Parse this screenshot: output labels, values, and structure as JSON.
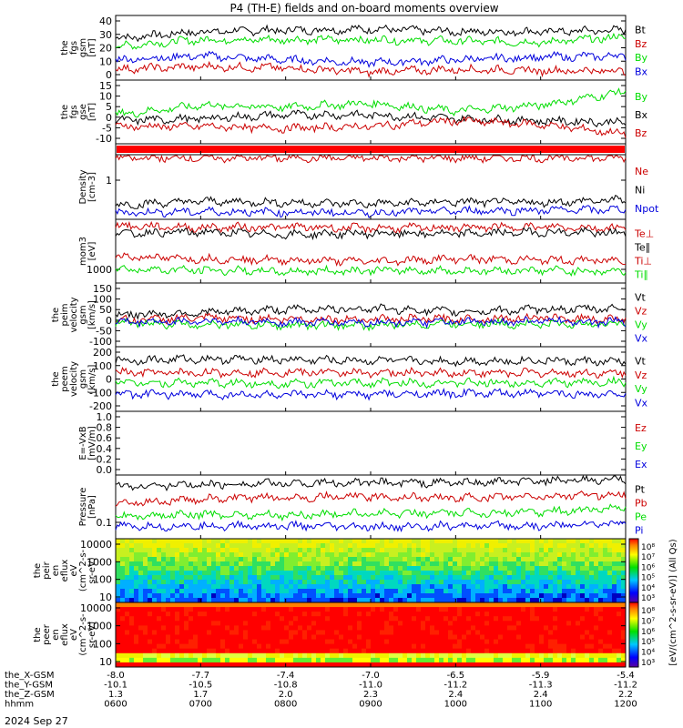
{
  "chart_data": {
    "type": "line",
    "title": "P4 (TH-E) fields and on-board moments overview",
    "x": [
      "0600",
      "0700",
      "0800",
      "0900",
      "1000",
      "1100",
      "1200"
    ],
    "panels": [
      {
        "ylabel": [
          "the",
          "fgs",
          "gsm",
          "[nT]"
        ],
        "yticks": [
          "40",
          "30",
          "20",
          "10",
          "0"
        ],
        "ylim": [
          -3,
          45
        ],
        "legend": [
          {
            "name": "Bt",
            "color": "#000000"
          },
          {
            "name": "Bz",
            "color": "#cc0000"
          },
          {
            "name": "By",
            "color": "#00dd00"
          },
          {
            "name": "Bx",
            "color": "#0000dd"
          }
        ],
        "series": [
          {
            "name": "Bt",
            "values": [
              28,
              33,
              34,
              35,
              33,
              33,
              34
            ]
          },
          {
            "name": "By",
            "values": [
              22,
              27,
              27,
              27,
              26,
              25,
              29
            ]
          },
          {
            "name": "Bx",
            "values": [
              12,
              15,
              12,
              10,
              12,
              14,
              15
            ]
          },
          {
            "name": "Bz",
            "values": [
              5,
              7,
              6,
              3,
              5,
              4,
              4
            ]
          }
        ]
      },
      {
        "ylabel": [
          "the",
          "fgs",
          "gse",
          "[nT]"
        ],
        "yticks": [
          "15",
          "10",
          "5",
          "0",
          "-5",
          "-10"
        ],
        "ylim": [
          -15,
          18
        ],
        "legend": [
          {
            "name": "By",
            "color": "#00dd00"
          },
          {
            "name": "Bx",
            "color": "#000000"
          },
          {
            "name": "Bz",
            "color": "#cc0000"
          }
        ],
        "series": [
          {
            "name": "By",
            "values": [
              0,
              5,
              4,
              6,
              2,
              5,
              12
            ]
          },
          {
            "name": "Bx",
            "values": [
              -3,
              -2,
              0,
              0,
              -2,
              -3,
              -4
            ]
          },
          {
            "name": "Bz",
            "values": [
              -6,
              -6,
              -7,
              -6,
              -3,
              -5,
              -10
            ]
          }
        ]
      },
      {
        "ylabel": [],
        "yticks": [],
        "band": "#ff0000"
      },
      {
        "ylabel": [
          "Density",
          "[cm-3]"
        ],
        "yticks": [
          "1"
        ],
        "ylim": [
          0,
          1
        ],
        "legend": [
          {
            "name": "Ne",
            "color": "#cc0000"
          },
          {
            "name": "Ni",
            "color": "#000000"
          },
          {
            "name": "Npot",
            "color": "#0000dd"
          }
        ],
        "series": [
          {
            "name": "Ne",
            "values": [
              0.95,
              0.95,
              0.95,
              0.95,
              0.95,
              0.95,
              0.95
            ]
          },
          {
            "name": "Ni",
            "values": [
              0.22,
              0.28,
              0.26,
              0.24,
              0.27,
              0.26,
              0.3
            ]
          },
          {
            "name": "Npot",
            "values": [
              0.1,
              0.12,
              0.11,
              0.1,
              0.13,
              0.14,
              0.15
            ]
          }
        ]
      },
      {
        "ylabel": [
          "mom3",
          "[eV]"
        ],
        "yticks": [
          "1000"
        ],
        "ylim": [
          0,
          1
        ],
        "legend": [
          {
            "name": "Te⊥",
            "color": "#cc0000"
          },
          {
            "name": "Te∥",
            "color": "#000000"
          },
          {
            "name": "Ti⊥",
            "color": "#cc0000"
          },
          {
            "name": "Ti∥",
            "color": "#00dd00"
          }
        ],
        "series": [
          {
            "name": "Te⊥",
            "values": [
              0.9,
              0.87,
              0.88,
              0.86,
              0.87,
              0.88,
              0.86
            ]
          },
          {
            "name": "Te∥",
            "values": [
              0.78,
              0.8,
              0.76,
              0.78,
              0.77,
              0.8,
              0.78
            ]
          },
          {
            "name": "Ti⊥",
            "values": [
              0.42,
              0.38,
              0.36,
              0.34,
              0.38,
              0.36,
              0.35
            ]
          },
          {
            "name": "Ti∥",
            "values": [
              0.22,
              0.2,
              0.18,
              0.2,
              0.19,
              0.2,
              0.18
            ]
          }
        ]
      },
      {
        "ylabel": [
          "the",
          "peim",
          "velocity",
          "gsm",
          "[km/s]"
        ],
        "yticks": [
          "150",
          "100",
          "50",
          "0",
          "-50",
          "-100"
        ],
        "ylim": [
          -120,
          180
        ],
        "legend": [
          {
            "name": "Vt",
            "color": "#000000"
          },
          {
            "name": "Vz",
            "color": "#cc0000"
          },
          {
            "name": "Vy",
            "color": "#00dd00"
          },
          {
            "name": "Vx",
            "color": "#0000dd"
          }
        ],
        "series": [
          {
            "name": "Vt",
            "values": [
              30,
              40,
              55,
              60,
              45,
              55,
              60
            ]
          },
          {
            "name": "Vz",
            "values": [
              5,
              15,
              10,
              10,
              10,
              15,
              10
            ]
          },
          {
            "name": "Vy",
            "values": [
              -10,
              -15,
              -20,
              -20,
              -10,
              -15,
              -10
            ]
          },
          {
            "name": "Vx",
            "values": [
              -5,
              0,
              -5,
              -5,
              -5,
              0,
              -5
            ]
          }
        ]
      },
      {
        "ylabel": [
          "the",
          "peem",
          "velocity",
          "gsm",
          "[km/s]"
        ],
        "yticks": [
          "200",
          "100",
          "0",
          "-100",
          "-200"
        ],
        "ylim": [
          -210,
          210
        ],
        "legend": [
          {
            "name": "Vt",
            "color": "#000000"
          },
          {
            "name": "Vz",
            "color": "#cc0000"
          },
          {
            "name": "Vy",
            "color": "#00dd00"
          },
          {
            "name": "Vx",
            "color": "#0000dd"
          }
        ],
        "series": [
          {
            "name": "Vt",
            "values": [
              120,
              130,
              125,
              120,
              115,
              120,
              110
            ]
          },
          {
            "name": "Vz",
            "values": [
              40,
              40,
              45,
              40,
              40,
              40,
              35
            ]
          },
          {
            "name": "Vy",
            "values": [
              -20,
              -25,
              -30,
              -25,
              -25,
              -25,
              -20
            ]
          },
          {
            "name": "Vx",
            "values": [
              -100,
              -100,
              -105,
              -100,
              -95,
              -95,
              -100
            ]
          }
        ]
      },
      {
        "ylabel": [
          "E=-VxB",
          "[mV/m]"
        ],
        "yticks": [
          "1.0",
          "0.8",
          "0.6",
          "0.4",
          "0.2",
          "0.0"
        ],
        "ylim": [
          0,
          1
        ],
        "legend": [
          {
            "name": "Ez",
            "color": "#cc0000"
          },
          {
            "name": "Ey",
            "color": "#00dd00"
          },
          {
            "name": "Ex",
            "color": "#0000dd"
          }
        ]
      },
      {
        "ylabel": [
          "Pressure",
          "[nPa]"
        ],
        "yticks": [
          "0.1"
        ],
        "ylim": [
          0,
          1
        ],
        "legend": [
          {
            "name": "Pt",
            "color": "#000000"
          },
          {
            "name": "Pb",
            "color": "#cc0000"
          },
          {
            "name": "Pe",
            "color": "#00dd00"
          },
          {
            "name": "Pi",
            "color": "#0000dd"
          }
        ],
        "series": [
          {
            "name": "Pt",
            "values": [
              0.82,
              0.85,
              0.87,
              0.88,
              0.88,
              0.9,
              0.93
            ]
          },
          {
            "name": "Pb",
            "values": [
              0.55,
              0.62,
              0.65,
              0.66,
              0.64,
              0.66,
              0.7
            ]
          },
          {
            "name": "Pe",
            "values": [
              0.35,
              0.38,
              0.37,
              0.4,
              0.4,
              0.42,
              0.48
            ]
          },
          {
            "name": "Pi",
            "values": [
              0.18,
              0.2,
              0.2,
              0.18,
              0.2,
              0.2,
              0.25
            ]
          }
        ]
      },
      {
        "ylabel": [
          "the",
          "peir",
          "en",
          "eflux",
          "eV",
          "(cm^2-s-",
          "sr-eV)"
        ],
        "yticks": [
          "10000",
          "1000",
          "100",
          "10"
        ],
        "ylim": [
          10,
          20000
        ],
        "spectrogram": "ion"
      },
      {
        "ylabel": [
          "the",
          "peer",
          "en",
          "eflux",
          "eV",
          "(cm^2-s-",
          "sr-eV)"
        ],
        "yticks": [
          "10000",
          "1000",
          "100",
          "10"
        ],
        "ylim": [
          10,
          20000
        ],
        "spectrogram": "electron"
      }
    ],
    "colorbars": [
      {
        "ticks": [
          "10⁸",
          "10⁷",
          "10⁶",
          "10⁵",
          "10⁴",
          "10³"
        ]
      },
      {
        "ticks": [
          "10⁸",
          "10⁷",
          "10⁶",
          "10⁵",
          "10⁴",
          "10³"
        ]
      }
    ],
    "colorbar_label": "[eV/(cm^2-s-sr-eV)] (All Qs)",
    "ephemeris": [
      {
        "label": "the_X-GSM",
        "values": [
          "-8.0",
          "-7.7",
          "-7.4",
          "-7.0",
          "-6.5",
          "-5.9",
          "-5.4"
        ]
      },
      {
        "label": "the_Y-GSM",
        "values": [
          "-10.1",
          "-10.5",
          "-10.8",
          "-11.0",
          "-11.2",
          "-11.3",
          "-11.2"
        ]
      },
      {
        "label": "the_Z-GSM",
        "values": [
          "1.3",
          "1.7",
          "2.0",
          "2.3",
          "2.4",
          "2.4",
          "2.2"
        ]
      },
      {
        "label": "hhmm",
        "values": [
          "0600",
          "0700",
          "0800",
          "0900",
          "1000",
          "1100",
          "1200"
        ]
      }
    ],
    "date": "2024 Sep 27"
  }
}
